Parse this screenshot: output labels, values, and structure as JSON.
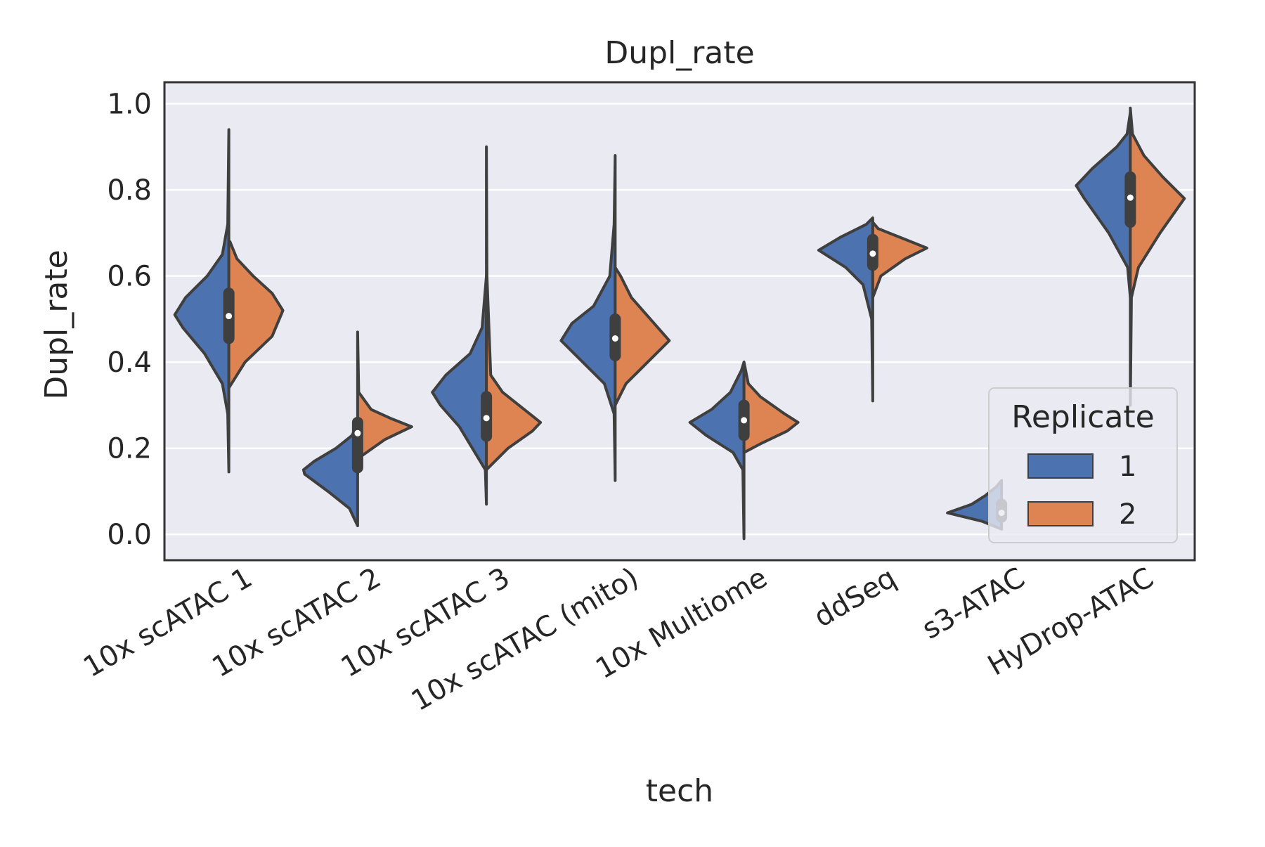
{
  "chart_data": {
    "type": "violin",
    "split": true,
    "title": "Dupl_rate",
    "xlabel": "tech",
    "ylabel": "Dupl_rate",
    "ylim": [
      -0.06,
      1.05
    ],
    "yticks": [
      0.0,
      0.2,
      0.4,
      0.6,
      0.8,
      1.0
    ],
    "ytick_labels": [
      "0.0",
      "0.2",
      "0.4",
      "0.6",
      "0.8",
      "1.0"
    ],
    "grid": true,
    "background": "#eaeaf2",
    "legend": {
      "title": "Replicate",
      "placement": "lower-right",
      "entries": [
        {
          "label": "1",
          "color": "#4c72b0"
        },
        {
          "label": "2",
          "color": "#dd8452"
        }
      ]
    },
    "categories": [
      "10x scATAC 1",
      "10x scATAC 2",
      "10x scATAC 3",
      "10x scATAC (mito)",
      "10x Multiome",
      "ddSeq",
      "s3-ATAC",
      "HyDrop-ATAC"
    ],
    "series": [
      {
        "name": "1",
        "color": "#4c72b0",
        "side": "left",
        "violins": [
          {
            "profile": [
              [
                0.145,
                0
              ],
              [
                0.28,
                0.02
              ],
              [
                0.35,
                0.12
              ],
              [
                0.42,
                0.45
              ],
              [
                0.48,
                0.85
              ],
              [
                0.51,
                1.0
              ],
              [
                0.55,
                0.8
              ],
              [
                0.6,
                0.4
              ],
              [
                0.65,
                0.12
              ],
              [
                0.72,
                0.02
              ],
              [
                0.94,
                0
              ]
            ]
          },
          {
            "profile": [
              [
                0.02,
                0
              ],
              [
                0.06,
                0.15
              ],
              [
                0.1,
                0.55
              ],
              [
                0.14,
                0.98
              ],
              [
                0.15,
                1.0
              ],
              [
                0.17,
                0.8
              ],
              [
                0.2,
                0.4
              ],
              [
                0.23,
                0.1
              ],
              [
                0.26,
                0
              ]
            ]
          },
          {
            "profile": [
              [
                0.07,
                0
              ],
              [
                0.15,
                0.02
              ],
              [
                0.25,
                0.5
              ],
              [
                0.3,
                0.85
              ],
              [
                0.33,
                1.0
              ],
              [
                0.37,
                0.75
              ],
              [
                0.42,
                0.3
              ],
              [
                0.48,
                0.08
              ],
              [
                0.6,
                0
              ]
            ]
          },
          {
            "profile": [
              [
                0.125,
                0
              ],
              [
                0.28,
                0.02
              ],
              [
                0.35,
                0.2
              ],
              [
                0.4,
                0.6
              ],
              [
                0.45,
                1.0
              ],
              [
                0.49,
                0.8
              ],
              [
                0.53,
                0.4
              ],
              [
                0.6,
                0.1
              ],
              [
                0.72,
                0.02
              ],
              [
                0.88,
                0
              ]
            ]
          },
          {
            "profile": [
              [
                -0.01,
                0
              ],
              [
                0.15,
                0.02
              ],
              [
                0.19,
                0.2
              ],
              [
                0.23,
                0.7
              ],
              [
                0.26,
                1.0
              ],
              [
                0.29,
                0.6
              ],
              [
                0.33,
                0.25
              ],
              [
                0.38,
                0.05
              ],
              [
                0.4,
                0
              ]
            ]
          },
          {
            "profile": [
              [
                0.31,
                0
              ],
              [
                0.5,
                0.02
              ],
              [
                0.58,
                0.18
              ],
              [
                0.62,
                0.5
              ],
              [
                0.66,
                1.0
              ],
              [
                0.69,
                0.6
              ],
              [
                0.72,
                0.12
              ],
              [
                0.735,
                0
              ]
            ]
          },
          {
            "profile": [
              [
                0.012,
                0
              ],
              [
                0.03,
                0.35
              ],
              [
                0.05,
                1.0
              ],
              [
                0.07,
                0.55
              ],
              [
                0.09,
                0.3
              ],
              [
                0.11,
                0.1
              ],
              [
                0.125,
                0
              ]
            ]
          },
          {
            "profile": [
              [
                0.55,
                0
              ],
              [
                0.62,
                0.05
              ],
              [
                0.7,
                0.4
              ],
              [
                0.78,
                0.85
              ],
              [
                0.81,
                1.0
              ],
              [
                0.85,
                0.7
              ],
              [
                0.9,
                0.25
              ],
              [
                0.93,
                0.06
              ],
              [
                0.98,
                0
              ]
            ]
          }
        ]
      },
      {
        "name": "2",
        "color": "#dd8452",
        "side": "right",
        "violins": [
          {
            "profile": [
              [
                0.34,
                0
              ],
              [
                0.4,
                0.3
              ],
              [
                0.46,
                0.8
              ],
              [
                0.52,
                1.0
              ],
              [
                0.56,
                0.8
              ],
              [
                0.6,
                0.45
              ],
              [
                0.64,
                0.15
              ],
              [
                0.68,
                0.02
              ]
            ]
          },
          {
            "profile": [
              [
                0.14,
                0
              ],
              [
                0.18,
                0.05
              ],
              [
                0.22,
                0.5
              ],
              [
                0.25,
                1.0
              ],
              [
                0.27,
                0.6
              ],
              [
                0.29,
                0.25
              ],
              [
                0.33,
                0.02
              ],
              [
                0.47,
                0
              ]
            ]
          },
          {
            "profile": [
              [
                0.15,
                0
              ],
              [
                0.2,
                0.4
              ],
              [
                0.24,
                0.85
              ],
              [
                0.26,
                1.0
              ],
              [
                0.29,
                0.7
              ],
              [
                0.33,
                0.3
              ],
              [
                0.37,
                0.08
              ],
              [
                0.6,
                0.01
              ],
              [
                0.9,
                0
              ]
            ]
          },
          {
            "profile": [
              [
                0.3,
                0
              ],
              [
                0.35,
                0.2
              ],
              [
                0.4,
                0.6
              ],
              [
                0.45,
                1.0
              ],
              [
                0.5,
                0.65
              ],
              [
                0.55,
                0.3
              ],
              [
                0.6,
                0.1
              ],
              [
                0.62,
                0
              ]
            ]
          },
          {
            "profile": [
              [
                0.19,
                0
              ],
              [
                0.21,
                0.3
              ],
              [
                0.24,
                0.8
              ],
              [
                0.26,
                1.0
              ],
              [
                0.28,
                0.75
              ],
              [
                0.32,
                0.3
              ],
              [
                0.35,
                0.08
              ],
              [
                0.4,
                0
              ]
            ]
          },
          {
            "profile": [
              [
                0.55,
                0
              ],
              [
                0.6,
                0.15
              ],
              [
                0.64,
                0.6
              ],
              [
                0.665,
                1.0
              ],
              [
                0.69,
                0.5
              ],
              [
                0.71,
                0.1
              ],
              [
                0.725,
                0
              ]
            ]
          },
          {
            "profile": []
          },
          {
            "profile": [
              [
                0.3,
                0
              ],
              [
                0.55,
                0.02
              ],
              [
                0.62,
                0.15
              ],
              [
                0.7,
                0.55
              ],
              [
                0.78,
                1.0
              ],
              [
                0.83,
                0.6
              ],
              [
                0.88,
                0.25
              ],
              [
                0.93,
                0.04
              ],
              [
                0.99,
                0
              ]
            ]
          }
        ]
      }
    ],
    "boxes": [
      {
        "q1": 0.455,
        "median": 0.507,
        "q3": 0.56
      },
      {
        "q1": 0.155,
        "median": 0.235,
        "q3": 0.26
      },
      {
        "q1": 0.228,
        "median": 0.27,
        "q3": 0.32
      },
      {
        "q1": 0.415,
        "median": 0.455,
        "q3": 0.5
      },
      {
        "q1": 0.23,
        "median": 0.265,
        "q3": 0.3
      },
      {
        "q1": 0.625,
        "median": 0.652,
        "q3": 0.685
      },
      {
        "q1": 0.04,
        "median": 0.05,
        "q3": 0.07
      },
      {
        "q1": 0.725,
        "median": 0.782,
        "q3": 0.83
      }
    ]
  }
}
